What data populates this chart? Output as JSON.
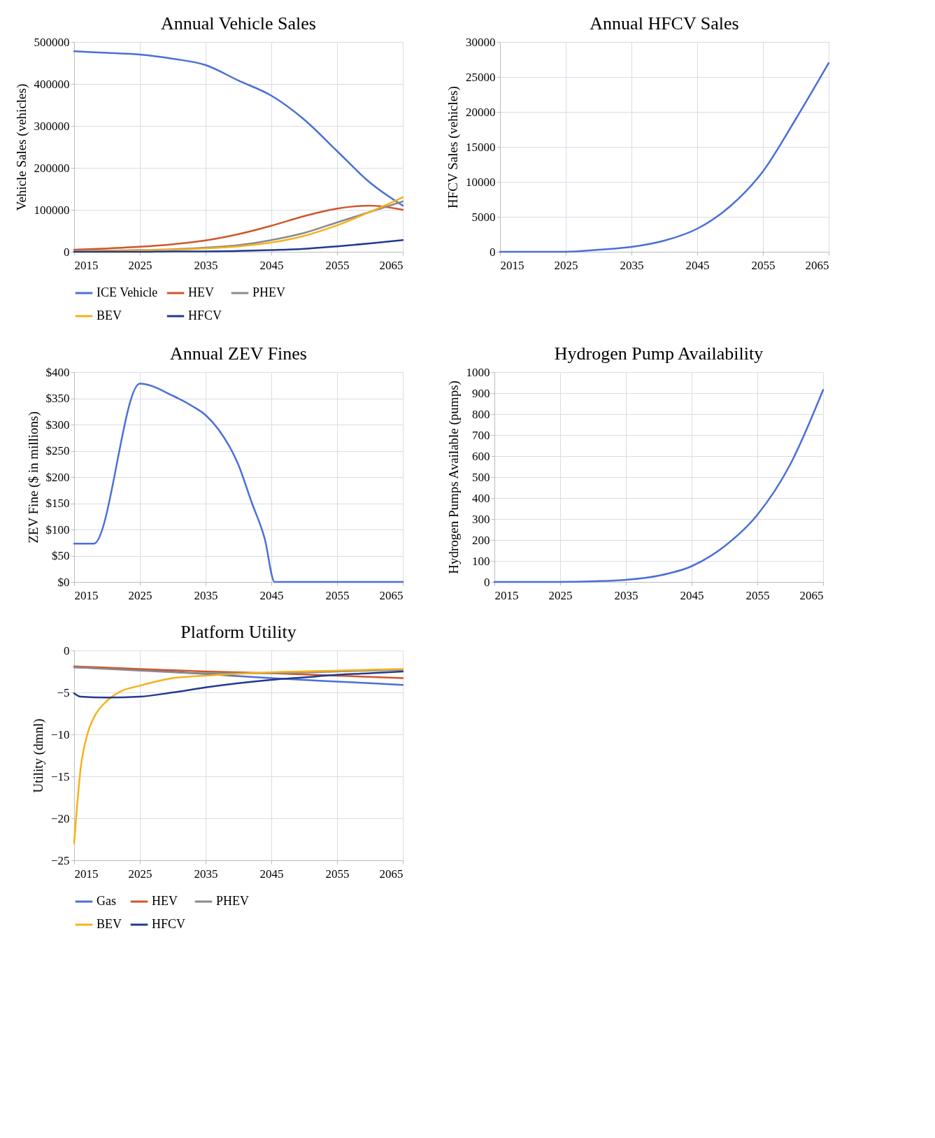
{
  "chart_data": [
    {
      "type": "line",
      "title": "Annual Vehicle Sales",
      "ylabel": "Vehicle Sales (vehicles)",
      "x": [
        2015,
        2020,
        2025,
        2030,
        2035,
        2040,
        2045,
        2050,
        2055,
        2060,
        2065
      ],
      "xlim": [
        2015,
        2065
      ],
      "xticks": [
        2015,
        2025,
        2035,
        2045,
        2055,
        2065
      ],
      "ylim": [
        0,
        500000
      ],
      "yticks": [
        0,
        100000,
        200000,
        300000,
        400000,
        500000
      ],
      "grid": true,
      "legend": "bottom",
      "marker": "none",
      "line_style": "solid",
      "series": [
        {
          "name": "ICE Vehicle",
          "color": "#4a6fd8",
          "values": [
            478000,
            474000,
            470000,
            460000,
            445000,
            408000,
            372000,
            315000,
            240000,
            165000,
            110000
          ]
        },
        {
          "name": "HEV",
          "color": "#d0562a",
          "values": [
            5000,
            8000,
            12000,
            18000,
            27000,
            42000,
            62000,
            85000,
            103000,
            110000,
            100000
          ]
        },
        {
          "name": "PHEV",
          "color": "#8a8a8a",
          "values": [
            2000,
            3000,
            4000,
            6000,
            10000,
            16000,
            28000,
            45000,
            70000,
            95000,
            120000
          ]
        },
        {
          "name": "BEV",
          "color": "#f5b21a",
          "values": [
            1000,
            2000,
            3000,
            5000,
            8000,
            13000,
            22000,
            38000,
            63000,
            95000,
            130000
          ]
        },
        {
          "name": "HFCV",
          "color": "#223a8f",
          "values": [
            0,
            0,
            0,
            1000,
            1000,
            2000,
            4000,
            7000,
            13000,
            20000,
            28000
          ]
        }
      ]
    },
    {
      "type": "line",
      "title": "Annual HFCV Sales",
      "ylabel": "HFCV Sales (vehicles)",
      "x": [
        2015,
        2020,
        2025,
        2030,
        2035,
        2040,
        2045,
        2050,
        2055,
        2060,
        2065
      ],
      "xlim": [
        2015,
        2065
      ],
      "xticks": [
        2015,
        2025,
        2035,
        2045,
        2055,
        2065
      ],
      "ylim": [
        0,
        30000
      ],
      "yticks": [
        0,
        5000,
        10000,
        15000,
        20000,
        25000,
        30000
      ],
      "grid": true,
      "marker": "none",
      "line_style": "solid",
      "color": "#4a6fd8",
      "values": [
        0,
        0,
        0,
        300,
        700,
        1600,
        3300,
        6500,
        11500,
        19000,
        27000
      ]
    },
    {
      "type": "line",
      "title": "Annual ZEV Fines",
      "ylabel": "ZEV Fine ($ in millions)",
      "x": [
        2015,
        2018,
        2025,
        2030,
        2033,
        2035,
        2037,
        2040,
        2042,
        2044,
        2045.5,
        2065
      ],
      "xlim": [
        2015,
        2065
      ],
      "xticks": [
        2015,
        2025,
        2035,
        2045,
        2055,
        2065
      ],
      "ylim": [
        0,
        400
      ],
      "yticks": [
        {
          "value": 0,
          "label": "$0"
        },
        {
          "value": 50,
          "label": "$50"
        },
        {
          "value": 100,
          "label": "$100"
        },
        {
          "value": 150,
          "label": "$150"
        },
        {
          "value": 200,
          "label": "$200"
        },
        {
          "value": 250,
          "label": "$250"
        },
        {
          "value": 300,
          "label": "$300"
        },
        {
          "value": 350,
          "label": "$350"
        },
        {
          "value": 400,
          "label": "$400"
        }
      ],
      "grid": true,
      "marker": "none",
      "line_style": "solid",
      "color": "#4a6fd8",
      "values": [
        73,
        73,
        378,
        355,
        335,
        318,
        290,
        223,
        152,
        82,
        0,
        0
      ]
    },
    {
      "type": "line",
      "title": "Hydrogen Pump Availability",
      "ylabel": "Hydrogen Pumps Available (pumps)",
      "x": [
        2015,
        2020,
        2025,
        2030,
        2035,
        2040,
        2045,
        2050,
        2055,
        2060,
        2065
      ],
      "xlim": [
        2015,
        2065
      ],
      "xticks": [
        2015,
        2025,
        2035,
        2045,
        2055,
        2065
      ],
      "ylim": [
        0,
        1000
      ],
      "yticks": [
        0,
        100,
        200,
        300,
        400,
        500,
        600,
        700,
        800,
        900,
        1000
      ],
      "grid": true,
      "marker": "none",
      "line_style": "solid",
      "color": "#4a6fd8",
      "values": [
        0,
        0,
        0,
        3,
        10,
        30,
        75,
        170,
        320,
        560,
        915
      ]
    },
    {
      "type": "line",
      "title": "Platform Utility",
      "ylabel": "Utility (dmnl)",
      "x": [
        2015,
        2025,
        2035,
        2045,
        2055,
        2065
      ],
      "xlim": [
        2015,
        2065
      ],
      "xticks": [
        2015,
        2025,
        2035,
        2045,
        2055,
        2065
      ],
      "ylim": [
        -25,
        0
      ],
      "yticks": [
        -25,
        -20,
        -15,
        -10,
        -5,
        0
      ],
      "grid": true,
      "legend": "bottom",
      "marker": "none",
      "line_style": "solid",
      "series": [
        {
          "name": "Gas",
          "color": "#4a6fd8",
          "values": [
            -2.0,
            -2.3,
            -2.8,
            -3.3,
            -3.7,
            -4.1
          ]
        },
        {
          "name": "HEV",
          "color": "#d0562a",
          "values": [
            -1.9,
            -2.2,
            -2.5,
            -2.7,
            -3.0,
            -3.3
          ]
        },
        {
          "name": "PHEV",
          "color": "#8a8a8a",
          "values": [
            -2.0,
            -2.4,
            -2.7,
            -2.7,
            -2.5,
            -2.3
          ]
        },
        {
          "name": "BEV",
          "color": "#f5b21a",
          "x": [
            2015,
            2016,
            2017,
            2018,
            2020,
            2022,
            2025,
            2030,
            2035,
            2045,
            2055,
            2065
          ],
          "values": [
            -23,
            -14,
            -10,
            -8,
            -6,
            -4.9,
            -4.2,
            -3.3,
            -3.0,
            -2.6,
            -2.4,
            -2.2
          ]
        },
        {
          "name": "HFCV",
          "color": "#223a8f",
          "x": [
            2015,
            2016,
            2020,
            2025,
            2030,
            2035,
            2040,
            2045,
            2050,
            2055,
            2060,
            2065
          ],
          "values": [
            -5.1,
            -5.5,
            -5.6,
            -5.5,
            -5.0,
            -4.4,
            -3.9,
            -3.5,
            -3.2,
            -2.9,
            -2.7,
            -2.5
          ]
        }
      ]
    }
  ]
}
